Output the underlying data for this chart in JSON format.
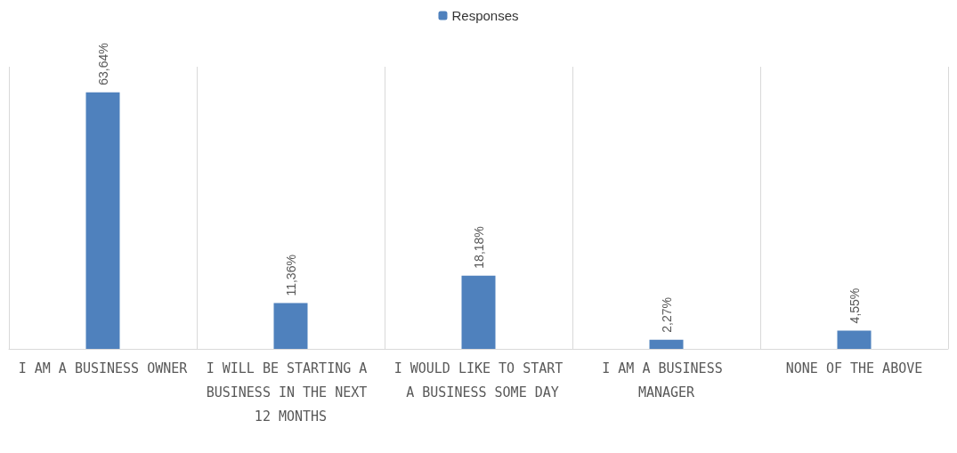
{
  "chart_data": {
    "type": "bar",
    "categories": [
      "I AM A BUSINESS OWNER",
      "I WILL BE STARTING A BUSINESS IN THE NEXT 12 MONTHS",
      "I WOULD LIKE TO START A BUSINESS SOME DAY",
      "I AM A BUSINESS MANAGER",
      "NONE OF THE ABOVE"
    ],
    "series": [
      {
        "name": "Responses",
        "color": "#4f81bd",
        "values": [
          63.64,
          11.36,
          18.18,
          2.27,
          4.55
        ],
        "value_labels": [
          "63,64%",
          "11,36%",
          "18,18%",
          "2,27%",
          "4,55%"
        ]
      }
    ],
    "legend": "top",
    "grid": "x"
  }
}
